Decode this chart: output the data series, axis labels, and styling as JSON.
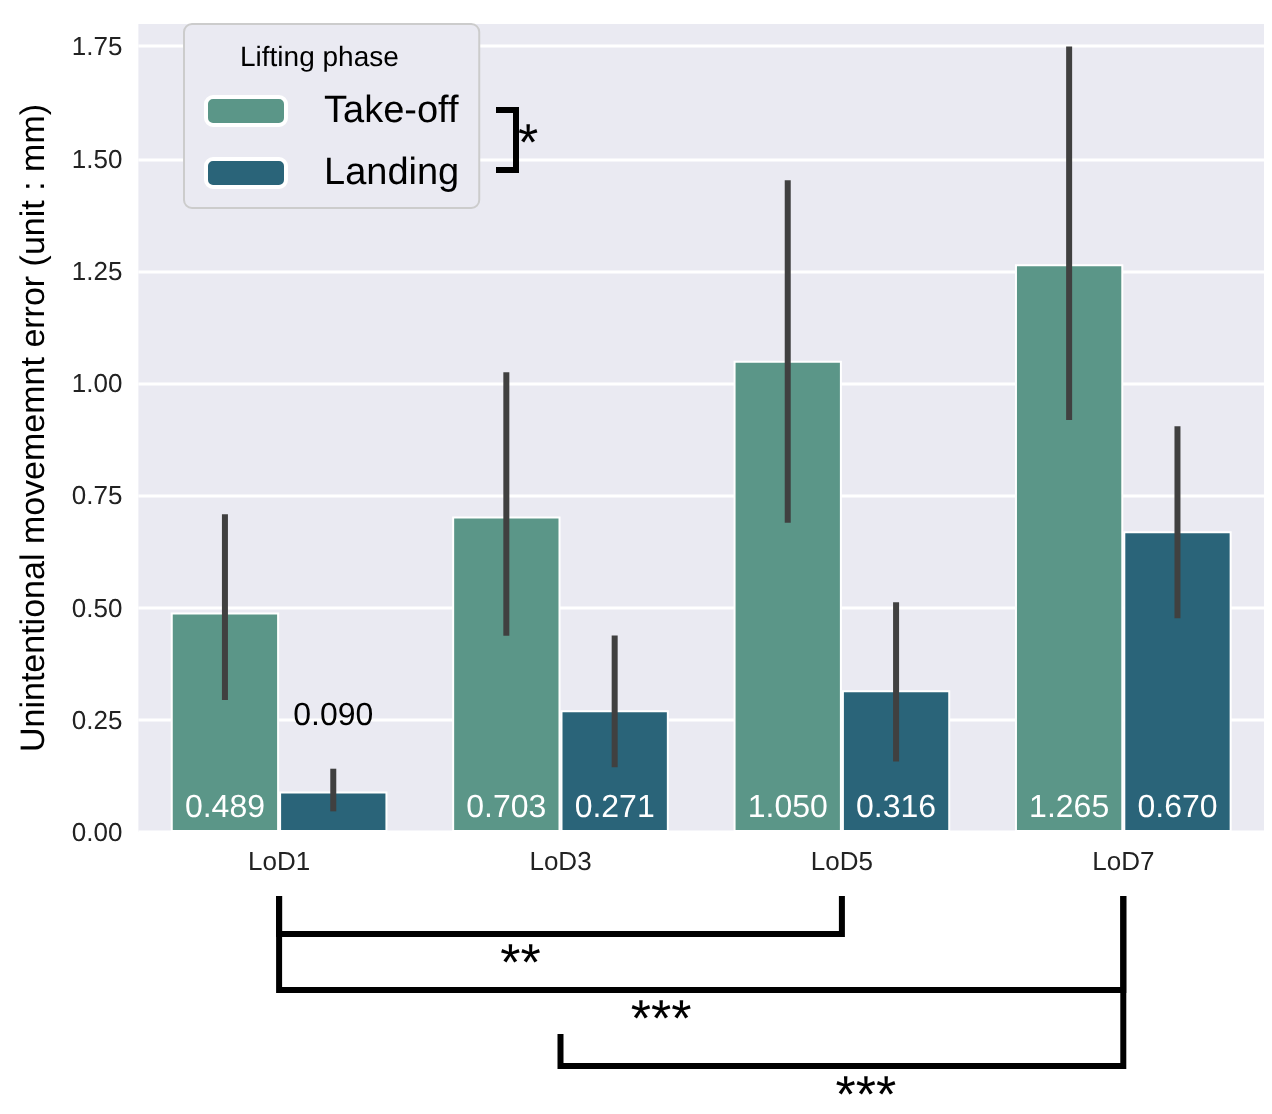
{
  "chart_data": {
    "type": "bar",
    "ylabel": "Unintentional movememnt error (unit : mm)",
    "legend_title": "Lifting phase",
    "legend": "top left",
    "grid": "y",
    "categories": [
      "LoD1",
      "LoD3",
      "LoD5",
      "LoD7"
    ],
    "series": [
      {
        "name": "Take-off",
        "color": "#5b9688",
        "values": [
          0.489,
          0.703,
          1.05,
          1.265
        ],
        "value_labels": [
          "0.489",
          "0.703",
          "1.050",
          "1.265"
        ],
        "errors": [
          [
            0.294,
            0.708
          ],
          [
            0.437,
            1.024
          ],
          [
            0.689,
            1.452
          ],
          [
            0.918,
            1.75
          ]
        ]
      },
      {
        "name": "Landing",
        "color": "#2a6479",
        "values": [
          0.09,
          0.271,
          0.316,
          0.67
        ],
        "value_labels": [
          "0.090",
          "0.271",
          "0.316",
          "0.670"
        ],
        "errors": [
          [
            0.046,
            0.141
          ],
          [
            0.144,
            0.438
          ],
          [
            0.157,
            0.512
          ],
          [
            0.476,
            0.904
          ]
        ]
      }
    ],
    "ylim": [
      0,
      1.8
    ],
    "yticks": [
      {
        "value": 0,
        "label": "0.00"
      },
      {
        "value": 0.25,
        "label": "0.25"
      },
      {
        "value": 0.5,
        "label": "0.50"
      },
      {
        "value": 0.75,
        "label": "0.75"
      },
      {
        "value": 1,
        "label": "1.00"
      },
      {
        "value": 1.25,
        "label": "1.25"
      },
      {
        "value": 1.5,
        "label": "1.50"
      },
      {
        "value": 1.75,
        "label": "1.75"
      }
    ],
    "annotations": [
      "*",
      "**",
      "***",
      "***"
    ]
  }
}
